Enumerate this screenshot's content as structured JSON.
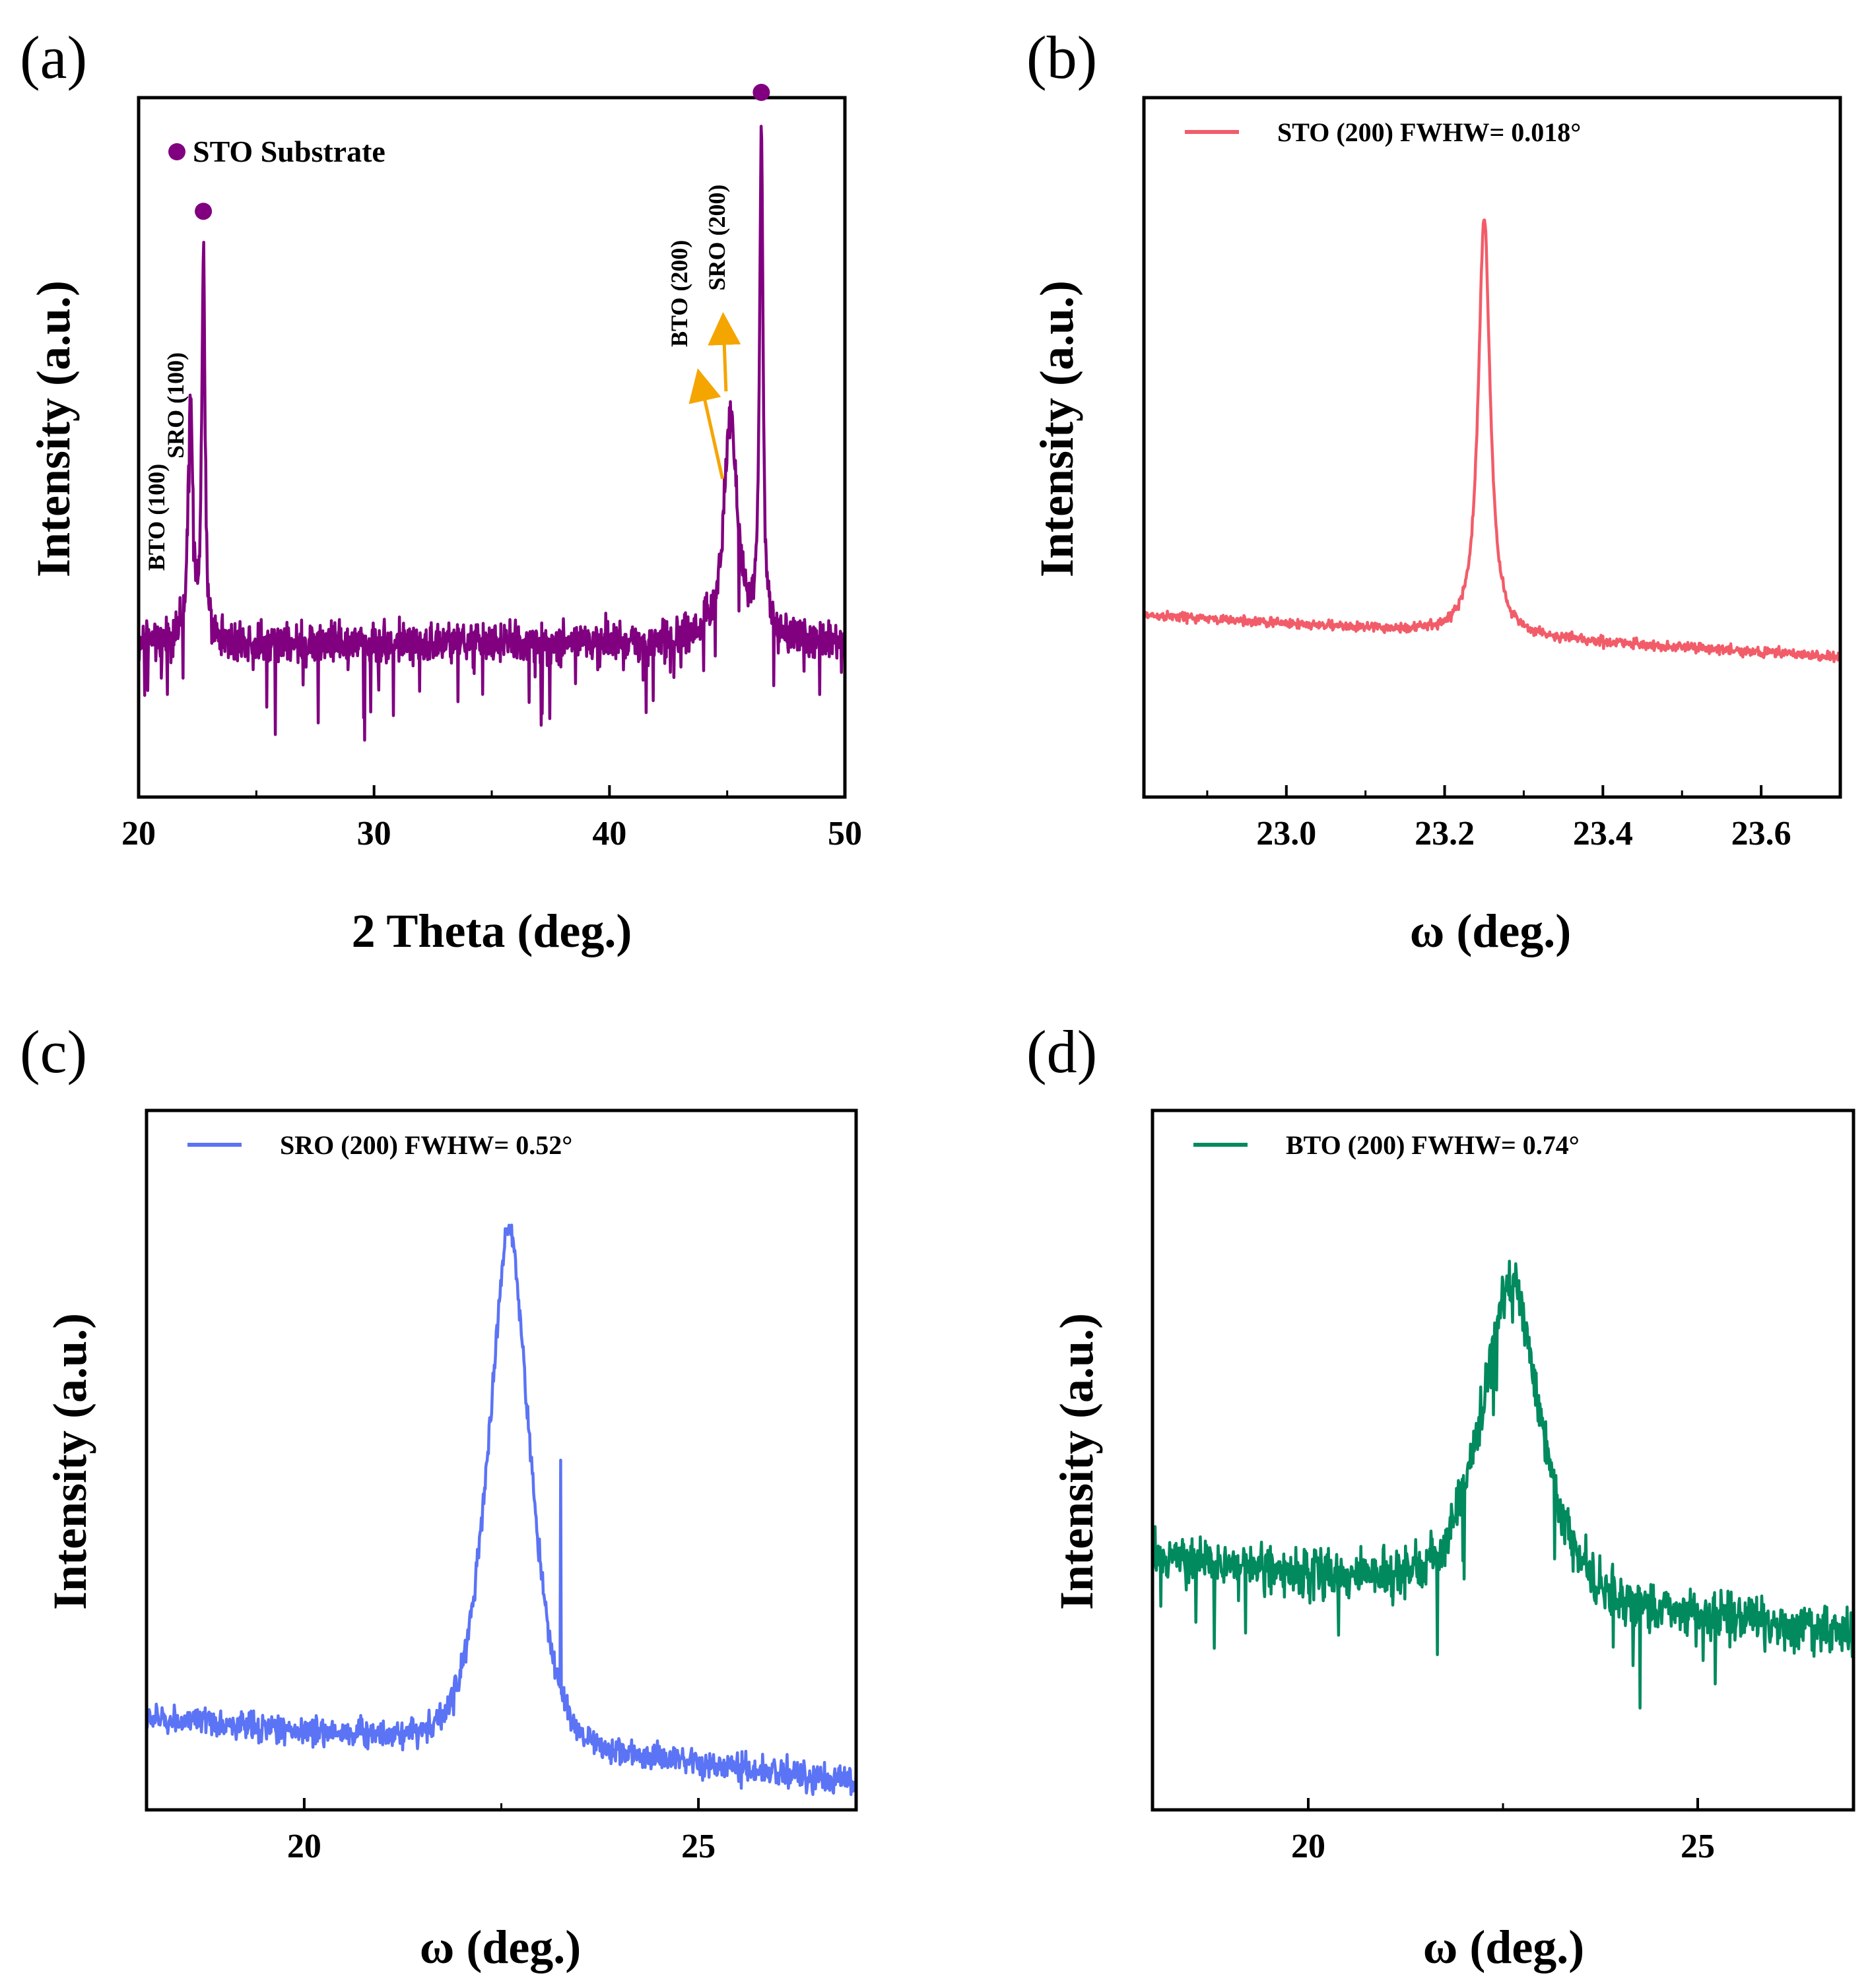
{
  "chart_data": [
    {
      "panel_label": "(a)",
      "type": "line",
      "title": "",
      "xlabel": "2 Theta (deg.)",
      "ylabel": "Intensity (a.u.)",
      "xlim": [
        20,
        50
      ],
      "ylim": [
        0,
        1
      ],
      "xticks": [
        20,
        30,
        40,
        50
      ],
      "xtick_labels": [
        "20",
        "30",
        "40",
        "50"
      ],
      "color": "#800080",
      "legend": "STO Substrate",
      "peaks": [
        {
          "x": 22.2,
          "height": 0.57,
          "width": 0.12
        },
        {
          "x": 22.75,
          "height": 0.78,
          "width": 0.08
        },
        {
          "x": 45.15,
          "height": 0.55,
          "width": 0.35
        },
        {
          "x": 46.45,
          "height": 0.95,
          "width": 0.09
        }
      ],
      "baseline": 0.22,
      "noise": 0.05,
      "markers": [
        {
          "x": 22.75,
          "y": 0.83
        },
        {
          "x": 46.45,
          "y": 1.0
        }
      ],
      "annotations": [
        {
          "text": "BTO (100)",
          "x": 21.1,
          "y": 0.4
        },
        {
          "text": "SRO (100)",
          "x": 21.9,
          "y": 0.56
        },
        {
          "text": "BTO (200)",
          "x": 43.3,
          "y": 0.72
        },
        {
          "text": "SRO (200)",
          "x": 44.9,
          "y": 0.8
        }
      ]
    },
    {
      "panel_label": "(b)",
      "type": "line",
      "xlabel": "ω (deg.)",
      "ylabel": "Intensity (a.u.)",
      "xlim": [
        22.82,
        23.7
      ],
      "ylim": [
        0,
        1
      ],
      "xticks": [
        23.0,
        23.2,
        23.4,
        23.6
      ],
      "xtick_labels": [
        "23.0",
        "23.2",
        "23.4",
        "23.6"
      ],
      "color": "#f25c69",
      "legend": "STO (200) FWHW= 0.018°",
      "center": 23.25,
      "peak_height": 0.83,
      "hwhm": 0.009,
      "baseline_left": 0.26,
      "baseline_right": 0.2,
      "noise": 0.012
    },
    {
      "panel_label": "(c)",
      "type": "line",
      "xlabel": "ω (deg.)",
      "ylabel": "Intensity (a.u.)",
      "xlim": [
        18.0,
        27.0
      ],
      "ylim": [
        0,
        1
      ],
      "xticks": [
        20,
        25
      ],
      "xtick_labels": [
        "20",
        "25"
      ],
      "color": "#5b73f5",
      "legend": "SRO (200) FWHW= 0.52°",
      "center": 22.6,
      "peak_height": 0.83,
      "hwhm": 0.26,
      "baseline_left": 0.13,
      "baseline_right": 0.04,
      "noise": 0.035,
      "spike": {
        "x": 23.25,
        "height": 0.5
      }
    },
    {
      "panel_label": "(d)",
      "type": "line",
      "xlabel": "ω (deg.)",
      "ylabel": "Intensity (a.u.)",
      "xlim": [
        18.0,
        27.0
      ],
      "ylim": [
        0,
        1
      ],
      "xticks": [
        20,
        25
      ],
      "xtick_labels": [
        "20",
        "25"
      ],
      "color": "#008a5e",
      "legend": "BTO (200) FWHW= 0.74°",
      "center": 22.6,
      "peak_height": 0.76,
      "hwhm": 0.37,
      "baseline_left": 0.36,
      "baseline_right": 0.25,
      "noise": 0.06
    }
  ]
}
